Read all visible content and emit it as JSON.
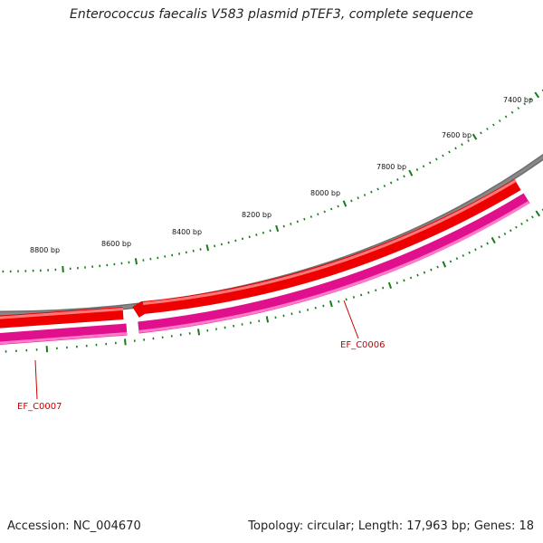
{
  "title": "Enterococcus faecalis V583 plasmid pTEF3, complete sequence",
  "footer": {
    "accession": "Accession: NC_004670",
    "summary": "Topology: circular; Length: 17,963 bp; Genes: 18"
  },
  "map": {
    "backbone_color": "#888888",
    "forward_color": "#ee0000",
    "reverse_color": "#e0108c",
    "tick_color": "#1a7a1a",
    "label_color": "#cc0000",
    "tick_labels": [
      "7400 bp",
      "7600 bp",
      "7800 bp",
      "8000 bp",
      "8200 bp",
      "8400 bp",
      "8600 bp",
      "8800 bp"
    ],
    "genes": [
      {
        "name": "EF_C0006",
        "strand": "reverse"
      },
      {
        "name": "EF_C0007",
        "strand": "reverse"
      }
    ]
  }
}
